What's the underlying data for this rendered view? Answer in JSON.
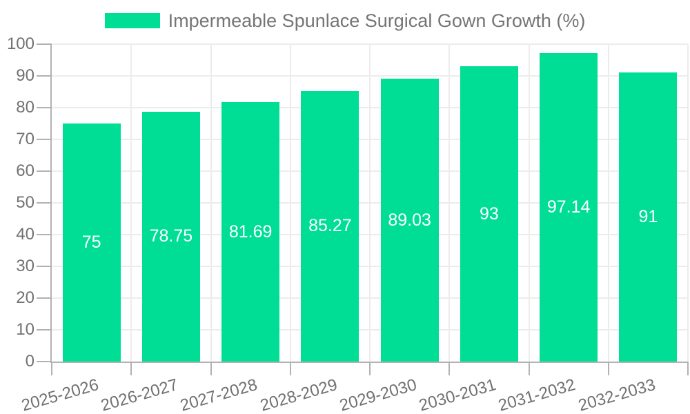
{
  "legend": {
    "label": "Impermeable Spunlace Surgical Gown Growth (%)"
  },
  "chart_data": {
    "type": "bar",
    "title": "",
    "xlabel": "",
    "ylabel": "",
    "series_name": "Impermeable Spunlace Surgical Gown Growth (%)",
    "categories": [
      "2025-2026",
      "2026-2027",
      "2027-2028",
      "2028-2029",
      "2029-2030",
      "2030-2031",
      "2031-2032",
      "2032-2033"
    ],
    "values": [
      75,
      78.75,
      81.69,
      85.27,
      89.03,
      93,
      97.14,
      91
    ],
    "value_labels": [
      "75",
      "78.75",
      "81.69",
      "85.27",
      "89.03",
      "93",
      "97.14",
      "91"
    ],
    "ylim": [
      0,
      100
    ],
    "y_ticks": [
      0,
      10,
      20,
      30,
      40,
      50,
      60,
      70,
      80,
      90,
      100
    ],
    "grid": true,
    "legend_position": "top-center",
    "style": {
      "bar_color": "#00de96",
      "bar_label_color": "#ffffff",
      "axis_color": "#b2b2b2",
      "grid_color": "#ececec",
      "tick_text_color": "#717171",
      "legend_text_color": "#757575",
      "background": "#ffffff"
    }
  }
}
